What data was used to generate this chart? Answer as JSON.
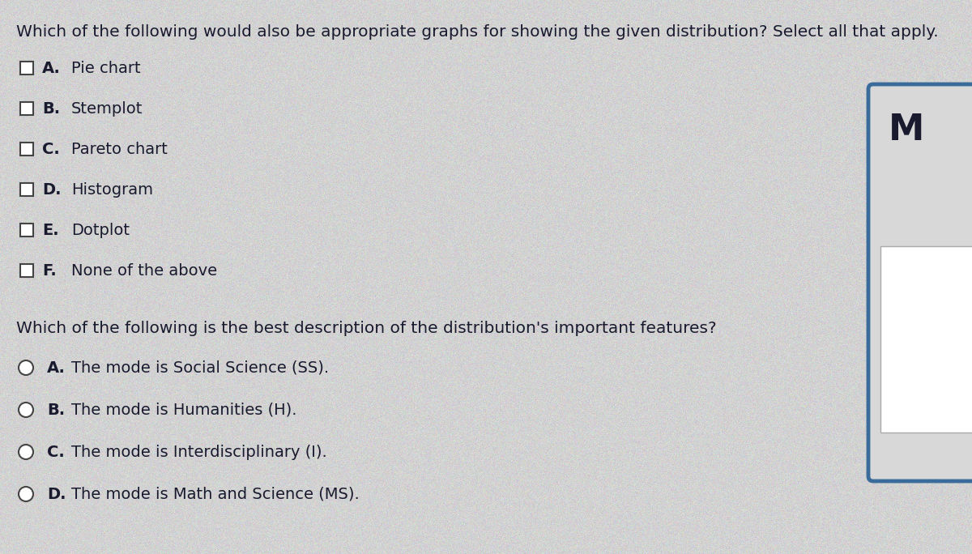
{
  "bg_color": "#c8c8c8",
  "panel_color": "#d4d4d4",
  "text_color": "#1a1a2e",
  "title1": "Which of the following would also be appropriate graphs for showing the given distribution? Select all that apply.",
  "checkbox_options": [
    [
      "A.",
      "Pie chart"
    ],
    [
      "B.",
      "Stemplot"
    ],
    [
      "C.",
      "Pareto chart"
    ],
    [
      "D.",
      "Histogram"
    ],
    [
      "E.",
      "Dotplot"
    ],
    [
      "F.",
      "None of the above"
    ]
  ],
  "title2": "Which of the following is the best description of the distribution's important features?",
  "radio_options": [
    [
      "A.",
      "The mode is Social Science (SS)."
    ],
    [
      "B.",
      "The mode is Humanities (H)."
    ],
    [
      "C.",
      "The mode is Interdisciplinary (I)."
    ],
    [
      "D.",
      "The mode is Math and Science (MS)."
    ]
  ],
  "side_letter": "M",
  "side_box_color": "#3a6b9a",
  "side_inner_color": "#d8d8d8",
  "inner_box_color": "#c0c0c0",
  "font_size_title": 14.5,
  "font_size_options": 14.0,
  "font_size_letter": 32
}
